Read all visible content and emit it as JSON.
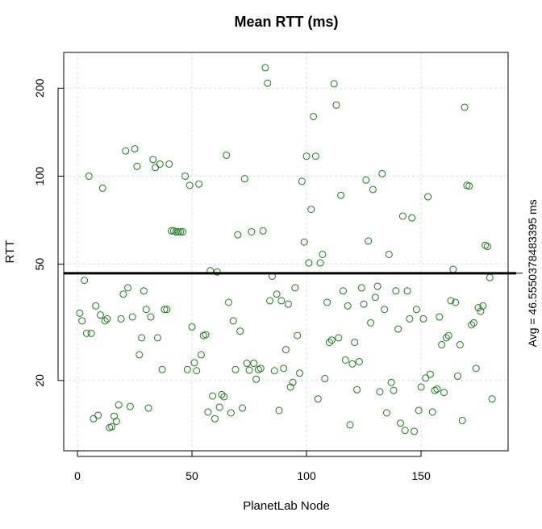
{
  "chart_data": {
    "type": "scatter",
    "title": "Mean RTT (ms)",
    "xlabel": "PlanetLab Node",
    "ylabel": "RTT",
    "x_scale": "linear",
    "y_scale": "log",
    "xlim": [
      -6,
      188
    ],
    "ylim": [
      11.5,
      265
    ],
    "xticks": [
      0,
      50,
      100,
      150
    ],
    "yticks": [
      20,
      50,
      100,
      200
    ],
    "grid": true,
    "point_color": "#1a7a1a",
    "avg_line": {
      "value": 46.5550378483395,
      "label": "Avg = 46.5550378483395 ms",
      "color": "#000000"
    },
    "points": [
      [
        1,
        34
      ],
      [
        2,
        32
      ],
      [
        3,
        44
      ],
      [
        4,
        29
      ],
      [
        5,
        100
      ],
      [
        6,
        29
      ],
      [
        7,
        14.8
      ],
      [
        8,
        36
      ],
      [
        9,
        15.2
      ],
      [
        10,
        33.5
      ],
      [
        11,
        91
      ],
      [
        12,
        32
      ],
      [
        13,
        32.5
      ],
      [
        14,
        13.8
      ],
      [
        15,
        13.9
      ],
      [
        16,
        15.1
      ],
      [
        17,
        14.5
      ],
      [
        18,
        16.5
      ],
      [
        19,
        32.5
      ],
      [
        20,
        39.5
      ],
      [
        21,
        122
      ],
      [
        22,
        41.5
      ],
      [
        23,
        16.3
      ],
      [
        24,
        33
      ],
      [
        25,
        124
      ],
      [
        26,
        108
      ],
      [
        27,
        24.5
      ],
      [
        28,
        28
      ],
      [
        29,
        40.5
      ],
      [
        30,
        35
      ],
      [
        31,
        16.1
      ],
      [
        32,
        33
      ],
      [
        33,
        114
      ],
      [
        34,
        107
      ],
      [
        35,
        28
      ],
      [
        36,
        110
      ],
      [
        37,
        21.8
      ],
      [
        38,
        35
      ],
      [
        39,
        35
      ],
      [
        40,
        110
      ],
      [
        41,
        65
      ],
      [
        42,
        65
      ],
      [
        43,
        64.5
      ],
      [
        44,
        64.5
      ],
      [
        45,
        64.5
      ],
      [
        46,
        64.5
      ],
      [
        47,
        100
      ],
      [
        48,
        21.8
      ],
      [
        49,
        93
      ],
      [
        50,
        30.5
      ],
      [
        51,
        23
      ],
      [
        52,
        21.6
      ],
      [
        53,
        94
      ],
      [
        54,
        24.5
      ],
      [
        55,
        28.5
      ],
      [
        56,
        28.7
      ],
      [
        57,
        15.6
      ],
      [
        58,
        47.5
      ],
      [
        59,
        17.7
      ],
      [
        60,
        14.8
      ],
      [
        61,
        47
      ],
      [
        62,
        16.2
      ],
      [
        63,
        17.9
      ],
      [
        64,
        17.6
      ],
      [
        65,
        118
      ],
      [
        66,
        37
      ],
      [
        67,
        15.5
      ],
      [
        68,
        32
      ],
      [
        69,
        21.8
      ],
      [
        70,
        63
      ],
      [
        71,
        29.5
      ],
      [
        72,
        16.1
      ],
      [
        73,
        98
      ],
      [
        74,
        22.9
      ],
      [
        75,
        21.7
      ],
      [
        76,
        64.5
      ],
      [
        77,
        22.9
      ],
      [
        78,
        20.2
      ],
      [
        79,
        21.8
      ],
      [
        80,
        22
      ],
      [
        81,
        65
      ],
      [
        82,
        235
      ],
      [
        83,
        208
      ],
      [
        84,
        37.5
      ],
      [
        85,
        45.5
      ],
      [
        86,
        21.6
      ],
      [
        87,
        39.5
      ],
      [
        88,
        15.8
      ],
      [
        89,
        37.5
      ],
      [
        90,
        22
      ],
      [
        91,
        25.5
      ],
      [
        92,
        36.5
      ],
      [
        93,
        19
      ],
      [
        94,
        19.7
      ],
      [
        95,
        41.5
      ],
      [
        96,
        28.5
      ],
      [
        97,
        21.2
      ],
      [
        98,
        96
      ],
      [
        99,
        59.5
      ],
      [
        100,
        117
      ],
      [
        101,
        50.5
      ],
      [
        102,
        77
      ],
      [
        103,
        160
      ],
      [
        104,
        117
      ],
      [
        105,
        17.3
      ],
      [
        106,
        50.5
      ],
      [
        107,
        54
      ],
      [
        108,
        20.3
      ],
      [
        109,
        37
      ],
      [
        110,
        27
      ],
      [
        111,
        27.5
      ],
      [
        112,
        207
      ],
      [
        113,
        175
      ],
      [
        114,
        28
      ],
      [
        115,
        86
      ],
      [
        116,
        40.5
      ],
      [
        117,
        23.5
      ],
      [
        118,
        36
      ],
      [
        119,
        14.1
      ],
      [
        120,
        22.8
      ],
      [
        121,
        27
      ],
      [
        122,
        18.6
      ],
      [
        123,
        23.2
      ],
      [
        124,
        41.5
      ],
      [
        125,
        36.5
      ],
      [
        126,
        97
      ],
      [
        127,
        60
      ],
      [
        128,
        31.5
      ],
      [
        129,
        90
      ],
      [
        130,
        38.5
      ],
      [
        131,
        42
      ],
      [
        132,
        18.3
      ],
      [
        133,
        102
      ],
      [
        134,
        35
      ],
      [
        135,
        15.5
      ],
      [
        136,
        54
      ],
      [
        137,
        19.7
      ],
      [
        138,
        18.5
      ],
      [
        139,
        40.5
      ],
      [
        140,
        30
      ],
      [
        141,
        14.3
      ],
      [
        142,
        73
      ],
      [
        143,
        13.5
      ],
      [
        144,
        40.5
      ],
      [
        145,
        32.5
      ],
      [
        146,
        72
      ],
      [
        147,
        13.4
      ],
      [
        148,
        35
      ],
      [
        149,
        15.8
      ],
      [
        150,
        19
      ],
      [
        151,
        32.5
      ],
      [
        152,
        20.4
      ],
      [
        153,
        85
      ],
      [
        154,
        21
      ],
      [
        155,
        15.6
      ],
      [
        156,
        18.5
      ],
      [
        157,
        18.7
      ],
      [
        158,
        33
      ],
      [
        159,
        26.5
      ],
      [
        160,
        18.2
      ],
      [
        161,
        28
      ],
      [
        162,
        28.5
      ],
      [
        163,
        37.5
      ],
      [
        164,
        48
      ],
      [
        165,
        37
      ],
      [
        166,
        20.7
      ],
      [
        167,
        26.5
      ],
      [
        168,
        14.6
      ],
      [
        169,
        172
      ],
      [
        170,
        93
      ],
      [
        171,
        92.5
      ],
      [
        172,
        31
      ],
      [
        173,
        31.5
      ],
      [
        174,
        22
      ],
      [
        175,
        35.5
      ],
      [
        176,
        34.5
      ],
      [
        177,
        36
      ],
      [
        178,
        58
      ],
      [
        179,
        57.5
      ],
      [
        180,
        45
      ],
      [
        181,
        17.3
      ]
    ]
  }
}
